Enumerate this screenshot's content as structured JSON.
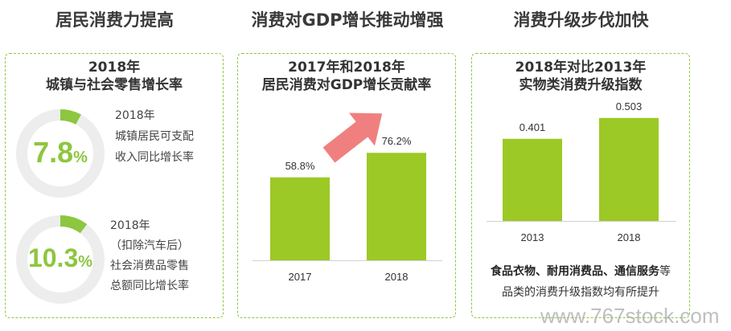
{
  "columns": [
    {
      "title": "居民消费力提高"
    },
    {
      "title": "消费对GDP增长推动增强"
    },
    {
      "title": "消费升级步伐加快"
    }
  ],
  "panel1": {
    "heading_line1": "2018年",
    "heading_line2": "城镇与社会零售增长率",
    "rings": [
      {
        "value": "7.8",
        "unit": "%",
        "fraction": 0.078,
        "desc": [
          "2018年",
          "城镇居民可支配",
          "收入同比增长率"
        ]
      },
      {
        "value": "10.3",
        "unit": "%",
        "fraction": 0.103,
        "desc": [
          "2018年",
          "（扣除汽车后）",
          "社会消费品零售",
          "总额同比增长率"
        ]
      }
    ]
  },
  "chart_data": [
    {
      "type": "bar",
      "title": "2017年和2018年居民消费对GDP增长贡献率",
      "title_line1": "2017年和2018年",
      "title_line2": "居民消费对GDP增长贡献率",
      "categories": [
        "2017",
        "2018"
      ],
      "values": [
        58.8,
        76.2
      ],
      "value_labels": [
        "58.8%",
        "76.2%"
      ],
      "ylim": [
        0,
        90
      ],
      "grid": false,
      "bar_color": "#9cc925",
      "annotation": "red upward arrow between bars"
    },
    {
      "type": "bar",
      "title": "2018年对比2013年实物类消费升级指数",
      "title_line1": "2018年对比2013年",
      "title_line2": "实物类消费升级指数",
      "categories": [
        "2013",
        "2018"
      ],
      "values": [
        0.401,
        0.503
      ],
      "value_labels": [
        "0.401",
        "0.503"
      ],
      "ylim": [
        0,
        0.62
      ],
      "grid": false,
      "bar_color": "#9cc925"
    }
  ],
  "panel3": {
    "note_bold": "食品衣物、耐用消费品、通信服务",
    "note_tail": "等",
    "note_line2": "品类的消费升级指数均有所提升"
  },
  "watermark": "www.767stock.com",
  "colors": {
    "accent": "#8dc63f",
    "bar": "#9cc925",
    "arrow": "#f08080",
    "ring_track": "#ededed"
  }
}
